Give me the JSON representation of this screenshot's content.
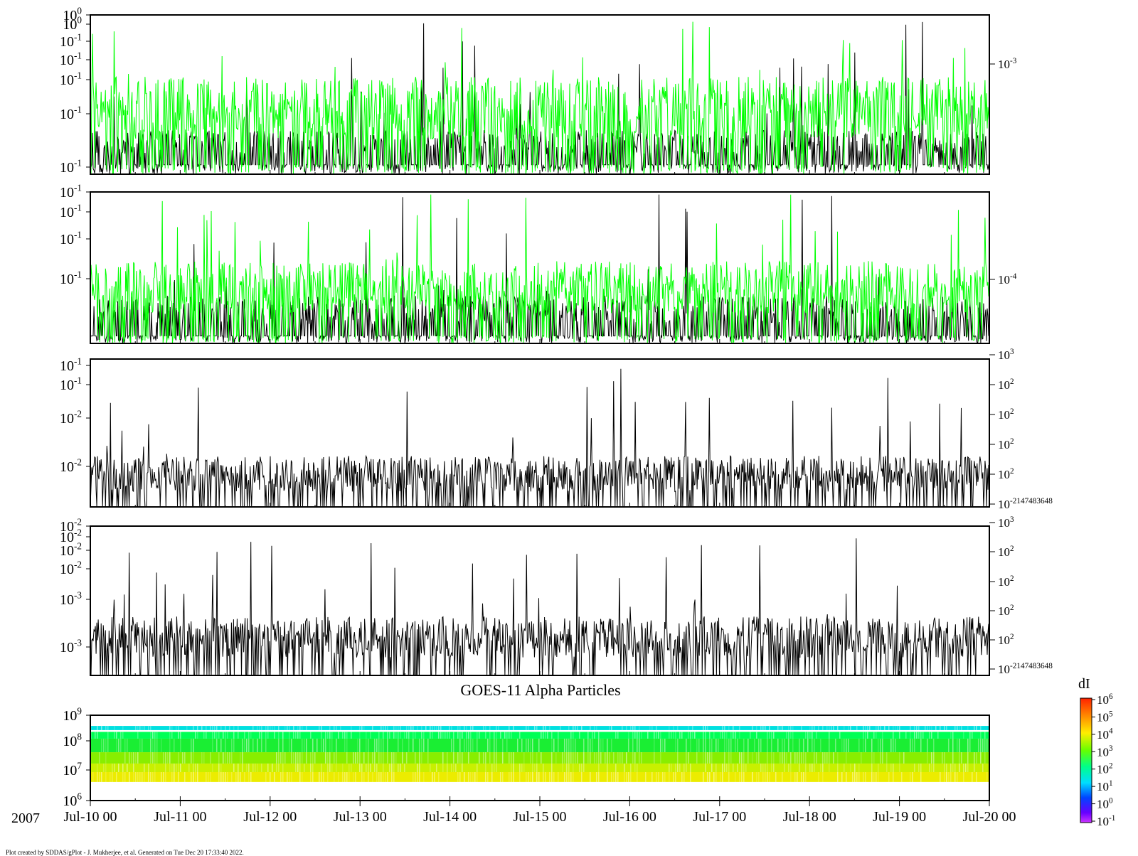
{
  "chart_data": [
    {
      "type": "line",
      "panel": 1,
      "left_ticks": [
        "10^0",
        "10^0",
        "10^-1",
        "10^-1",
        "10^-1",
        "10^-1",
        "10^-1"
      ],
      "right_ticks": [
        "10^-3"
      ],
      "series": [
        {
          "name": "",
          "color": "#000000",
          "baseline": 0.06,
          "typical": 0.28,
          "peak": 0.98,
          "density": 0.6
        },
        {
          "name": "",
          "color": "#00ff00",
          "baseline": 0.05,
          "typical": 0.62,
          "peak": 1.0,
          "density": 1.0
        }
      ]
    },
    {
      "type": "line",
      "panel": 2,
      "left_ticks": [
        "10^-1",
        "10^-1",
        "10^-1",
        "10^-1"
      ],
      "right_ticks": [
        "10^-4"
      ],
      "series": [
        {
          "name": "",
          "color": "#000000",
          "baseline": 0.05,
          "typical": 0.32,
          "peak": 1.0,
          "density": 0.6
        },
        {
          "name": "",
          "color": "#00ff00",
          "baseline": 0.05,
          "typical": 0.55,
          "peak": 1.0,
          "density": 1.0
        }
      ]
    },
    {
      "type": "line",
      "panel": 3,
      "left_ticks": [
        "10^-1",
        "10^-1",
        "10^-2",
        "10^-2"
      ],
      "right_ticks": [
        "10^3",
        "10^2",
        "10^2",
        "10^2",
        "10^2",
        "10^-2147483648"
      ],
      "series": [
        {
          "name": "",
          "color": "#000000",
          "baseline": 0.0,
          "typical": 0.35,
          "peak": 1.0,
          "density": 1.0
        }
      ]
    },
    {
      "type": "line",
      "panel": 4,
      "left_ticks": [
        "10^-2",
        "10^-2",
        "10^-2",
        "10^-2",
        "10^-3",
        "10^-3"
      ],
      "right_ticks": [
        "10^3",
        "10^2",
        "10^2",
        "10^2",
        "10^2",
        "10^-2147483648"
      ],
      "series": [
        {
          "name": "",
          "color": "#000000",
          "baseline": 0.0,
          "typical": 0.4,
          "peak": 1.0,
          "density": 1.0
        }
      ]
    },
    {
      "type": "heatmap",
      "panel": 5,
      "title": "GOES-11 Alpha Particles",
      "y_ticks": [
        "10^9",
        "10^8",
        "10^7",
        "10^6"
      ],
      "y_scale": "log",
      "ylim": [
        1000000,
        1000000000
      ],
      "bands": [
        {
          "y_low": 300000000,
          "y_high": 420000000,
          "color": "#00e0e0"
        },
        {
          "y_low": 150000000,
          "y_high": 260000000,
          "color": "#00ff55"
        },
        {
          "y_low": 50000000,
          "y_high": 150000000,
          "color": "#1aee33"
        },
        {
          "y_low": 20000000,
          "y_high": 50000000,
          "color": "#88ee00"
        },
        {
          "y_low": 10000000,
          "y_high": 20000000,
          "color": "#c8f000"
        },
        {
          "y_low": 4500000,
          "y_high": 10000000,
          "color": "#ecec00"
        }
      ],
      "colorbar": {
        "label": "dI",
        "ticks": [
          "10^6",
          "10^5",
          "10^4",
          "10^3",
          "10^2",
          "10^1",
          "10^0",
          "10^-1"
        ]
      }
    }
  ],
  "x_axis": {
    "year": "2007",
    "ticks": [
      "Jul-10 00",
      "Jul-11 00",
      "Jul-12 00",
      "Jul-13 00",
      "Jul-14 00",
      "Jul-15 00",
      "Jul-16 00",
      "Jul-17 00",
      "Jul-18 00",
      "Jul-19 00",
      "Jul-20 00"
    ]
  },
  "footer": {
    "credit": "Plot created by SDDAS/gPlot - J. Mukherjee, et al.  Generated on Tue Dec 20 17:33:40 2022."
  }
}
